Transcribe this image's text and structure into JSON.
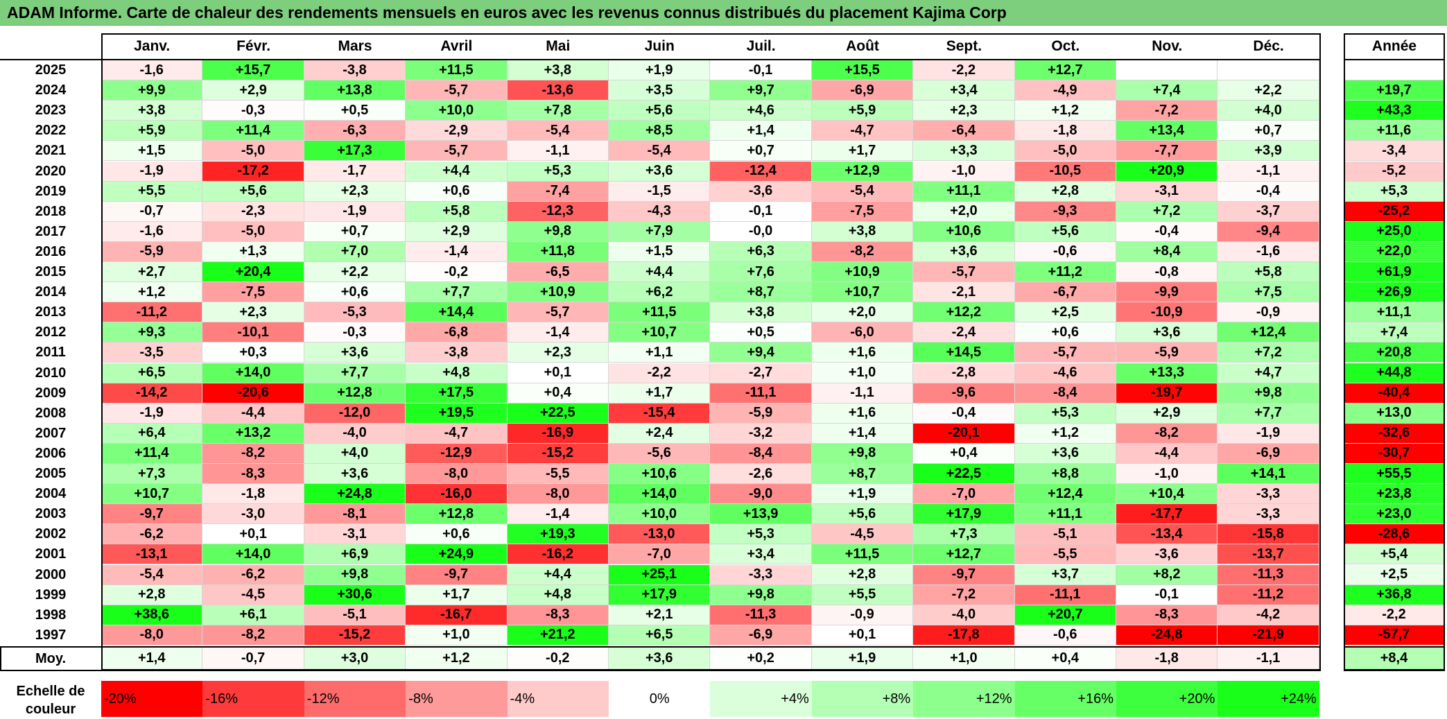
{
  "title": "ADAM Informe. Carte de chaleur des rendements mensuels en euros avec les revenus connus distribués du placement Kajima Corp",
  "chart_data": {
    "type": "heatmap",
    "title": "ADAM Informe. Carte de chaleur des rendements mensuels en euros avec les revenus connus distribués du placement Kajima Corp",
    "columns": [
      "Janv.",
      "Févr.",
      "Mars",
      "Avril",
      "Mai",
      "Juin",
      "Juil.",
      "Août",
      "Sept.",
      "Oct.",
      "Nov.",
      "Déc."
    ],
    "annual_header": "Année",
    "rows": [
      {
        "year": "2025",
        "values": [
          "-1,6",
          "+15,7",
          "-3,8",
          "+11,5",
          "+3,8",
          "+1,9",
          "-0,1",
          "+15,5",
          "-2,2",
          "+12,7",
          "",
          ""
        ],
        "annual": ""
      },
      {
        "year": "2024",
        "values": [
          "+9,9",
          "+2,9",
          "+13,8",
          "-5,7",
          "-13,6",
          "+3,5",
          "+9,7",
          "-6,9",
          "+3,4",
          "-4,9",
          "+7,4",
          "+2,2"
        ],
        "annual": "+19,7"
      },
      {
        "year": "2023",
        "values": [
          "+3,8",
          "-0,3",
          "+0,5",
          "+10,0",
          "+7,8",
          "+5,6",
          "+4,6",
          "+5,9",
          "+2,3",
          "+1,2",
          "-7,2",
          "+4,0"
        ],
        "annual": "+43,3"
      },
      {
        "year": "2022",
        "values": [
          "+5,9",
          "+11,4",
          "-6,3",
          "-2,9",
          "-5,4",
          "+8,5",
          "+1,4",
          "-4,7",
          "-6,4",
          "-1,8",
          "+13,4",
          "+0,7"
        ],
        "annual": "+11,6"
      },
      {
        "year": "2021",
        "values": [
          "+1,5",
          "-5,0",
          "+17,3",
          "-5,7",
          "-1,1",
          "-5,4",
          "+0,7",
          "+1,7",
          "+3,3",
          "-5,0",
          "-7,7",
          "+3,9"
        ],
        "annual": "-3,4"
      },
      {
        "year": "2020",
        "values": [
          "-1,9",
          "-17,2",
          "-1,7",
          "+4,4",
          "+5,3",
          "+3,6",
          "-12,4",
          "+12,9",
          "-1,0",
          "-10,5",
          "+20,9",
          "-1,1"
        ],
        "annual": "-5,2"
      },
      {
        "year": "2019",
        "values": [
          "+5,5",
          "+5,6",
          "+2,3",
          "+0,6",
          "-7,4",
          "-1,5",
          "-3,6",
          "-5,4",
          "+11,1",
          "+2,8",
          "-3,1",
          "-0,4"
        ],
        "annual": "+5,3"
      },
      {
        "year": "2018",
        "values": [
          "-0,7",
          "-2,3",
          "-1,9",
          "+5,8",
          "-12,3",
          "-4,3",
          "-0,1",
          "-7,5",
          "+2,0",
          "-9,3",
          "+7,2",
          "-3,7"
        ],
        "annual": "-25,2"
      },
      {
        "year": "2017",
        "values": [
          "-1,6",
          "-5,0",
          "+0,7",
          "+2,9",
          "+9,8",
          "+7,9",
          "-0,0",
          "+3,8",
          "+10,6",
          "+5,6",
          "-0,4",
          "-9,4"
        ],
        "annual": "+25,0"
      },
      {
        "year": "2016",
        "values": [
          "-5,9",
          "+1,3",
          "+7,0",
          "-1,4",
          "+11,8",
          "+1,5",
          "+6,3",
          "-8,2",
          "+3,6",
          "-0,6",
          "+8,4",
          "-1,6"
        ],
        "annual": "+22,0"
      },
      {
        "year": "2015",
        "values": [
          "+2,7",
          "+20,4",
          "+2,2",
          "-0,2",
          "-6,5",
          "+4,4",
          "+7,6",
          "+10,9",
          "-5,7",
          "+11,2",
          "-0,8",
          "+5,8"
        ],
        "annual": "+61,9"
      },
      {
        "year": "2014",
        "values": [
          "+1,2",
          "-7,5",
          "+0,6",
          "+7,7",
          "+10,9",
          "+6,2",
          "+8,7",
          "+10,7",
          "-2,1",
          "-6,7",
          "-9,9",
          "+7,5"
        ],
        "annual": "+26,9"
      },
      {
        "year": "2013",
        "values": [
          "-11,2",
          "+2,3",
          "-5,3",
          "+14,4",
          "-5,7",
          "+11,5",
          "+3,8",
          "+2,0",
          "+12,2",
          "+2,5",
          "-10,9",
          "-0,9"
        ],
        "annual": "+11,1"
      },
      {
        "year": "2012",
        "values": [
          "+9,3",
          "-10,1",
          "-0,3",
          "-6,8",
          "-1,4",
          "+10,7",
          "+0,5",
          "-6,0",
          "-2,4",
          "+0,6",
          "+3,6",
          "+12,4"
        ],
        "annual": "+7,4"
      },
      {
        "year": "2011",
        "values": [
          "-3,5",
          "+0,3",
          "+3,6",
          "-3,8",
          "+2,3",
          "+1,1",
          "+9,4",
          "+1,6",
          "+14,5",
          "-5,7",
          "-5,9",
          "+7,2"
        ],
        "annual": "+20,8"
      },
      {
        "year": "2010",
        "values": [
          "+6,5",
          "+14,0",
          "+7,7",
          "+4,8",
          "+0,1",
          "-2,2",
          "-2,7",
          "+1,0",
          "-2,8",
          "-4,6",
          "+13,3",
          "+4,7"
        ],
        "annual": "+44,8"
      },
      {
        "year": "2009",
        "values": [
          "-14,2",
          "-20,6",
          "+12,8",
          "+17,5",
          "+0,4",
          "+1,7",
          "-11,1",
          "-1,1",
          "-9,6",
          "-8,4",
          "-19,7",
          "+9,8"
        ],
        "annual": "-40,4"
      },
      {
        "year": "2008",
        "values": [
          "-1,9",
          "-4,4",
          "-12,0",
          "+19,5",
          "+22,5",
          "-15,4",
          "-5,9",
          "+1,6",
          "-0,4",
          "+5,3",
          "+2,9",
          "+7,7"
        ],
        "annual": "+13,0"
      },
      {
        "year": "2007",
        "values": [
          "+6,4",
          "+13,2",
          "-4,0",
          "-4,7",
          "-16,9",
          "+2,4",
          "-3,2",
          "+1,4",
          "-20,1",
          "+1,2",
          "-8,2",
          "-1,9"
        ],
        "annual": "-32,6"
      },
      {
        "year": "2006",
        "values": [
          "+11,4",
          "-8,2",
          "+4,0",
          "-12,9",
          "-15,2",
          "-5,6",
          "-8,4",
          "+9,8",
          "+0,4",
          "+3,6",
          "-4,4",
          "-6,9"
        ],
        "annual": "-30,7"
      },
      {
        "year": "2005",
        "values": [
          "+7,3",
          "-8,3",
          "+3,6",
          "-8,0",
          "-5,5",
          "+10,6",
          "-2,6",
          "+8,7",
          "+22,5",
          "+8,8",
          "-1,0",
          "+14,1"
        ],
        "annual": "+55,5"
      },
      {
        "year": "2004",
        "values": [
          "+10,7",
          "-1,8",
          "+24,8",
          "-16,0",
          "-8,0",
          "+14,0",
          "-9,0",
          "+1,9",
          "-7,0",
          "+12,4",
          "+10,4",
          "-3,3"
        ],
        "annual": "+23,8"
      },
      {
        "year": "2003",
        "values": [
          "-9,7",
          "-3,0",
          "-8,1",
          "+12,8",
          "-1,4",
          "+10,0",
          "+13,9",
          "+5,6",
          "+17,9",
          "+11,1",
          "-17,7",
          "-3,3"
        ],
        "annual": "+23,0"
      },
      {
        "year": "2002",
        "values": [
          "-6,2",
          "+0,1",
          "-3,1",
          "+0,6",
          "+19,3",
          "-13,0",
          "+5,3",
          "-4,5",
          "+7,3",
          "-5,1",
          "-13,4",
          "-15,8"
        ],
        "annual": "-28,6"
      },
      {
        "year": "2001",
        "values": [
          "-13,1",
          "+14,0",
          "+6,9",
          "+24,9",
          "-16,2",
          "-7,0",
          "+3,4",
          "+11,5",
          "+12,7",
          "-5,5",
          "-3,6",
          "-13,7"
        ],
        "annual": "+5,4"
      },
      {
        "year": "2000",
        "values": [
          "-5,4",
          "-6,2",
          "+9,8",
          "-9,7",
          "+4,4",
          "+25,1",
          "-3,3",
          "+2,8",
          "-9,7",
          "+3,7",
          "+8,2",
          "-11,3"
        ],
        "annual": "+2,5"
      },
      {
        "year": "1999",
        "values": [
          "+2,8",
          "-4,5",
          "+30,6",
          "+1,7",
          "+4,8",
          "+17,9",
          "+9,8",
          "+5,5",
          "-7,2",
          "-11,1",
          "-0,1",
          "-11,2"
        ],
        "annual": "+36,8"
      },
      {
        "year": "1998",
        "values": [
          "+38,6",
          "+6,1",
          "-5,1",
          "-16,7",
          "-8,3",
          "+2,1",
          "-11,3",
          "-0,9",
          "-4,0",
          "+20,7",
          "-8,3",
          "-4,2"
        ],
        "annual": "-2,2"
      },
      {
        "year": "1997",
        "values": [
          "-8,0",
          "-8,2",
          "-15,2",
          "+1,0",
          "+21,2",
          "+6,5",
          "-6,9",
          "+0,1",
          "-17,8",
          "-0,6",
          "-24,8",
          "-21,9"
        ],
        "annual": "-57,7"
      }
    ],
    "average": {
      "label": "Moy.",
      "values": [
        "+1,4",
        "-0,7",
        "+3,0",
        "+1,2",
        "-0,2",
        "+3,6",
        "+0,2",
        "+1,9",
        "+1,0",
        "+0,4",
        "-1,8",
        "-1,1"
      ],
      "annual": "+8,4"
    },
    "scale": {
      "label": "Echelle de couleur",
      "steps": [
        {
          "label": "-20%",
          "value": -20,
          "color": "#ff0000"
        },
        {
          "label": "-16%",
          "value": -16,
          "color": "#ff3a3a"
        },
        {
          "label": "-12%",
          "value": -12,
          "color": "#ff6b6b"
        },
        {
          "label": "-8%",
          "value": -8,
          "color": "#ff9a9a"
        },
        {
          "label": "-4%",
          "value": -4,
          "color": "#ffcaca"
        },
        {
          "label": "0%",
          "value": 0,
          "color": "#ffffff"
        },
        {
          "label": "+4%",
          "value": 4,
          "color": "#dbffdb"
        },
        {
          "label": "+8%",
          "value": 8,
          "color": "#b3ffb3"
        },
        {
          "label": "+12%",
          "value": 12,
          "color": "#8cff8c"
        },
        {
          "label": "+16%",
          "value": 16,
          "color": "#66ff66"
        },
        {
          "label": "+20%",
          "value": 20,
          "color": "#3dff3d"
        },
        {
          "label": "+24%",
          "value": 24,
          "color": "#1aff1a"
        }
      ]
    }
  }
}
